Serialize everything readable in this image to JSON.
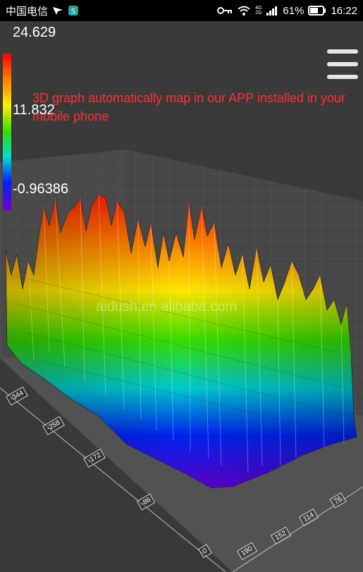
{
  "statusbar": {
    "carrier": "中国电信",
    "battery": "61%",
    "time": "16:22",
    "net_top": "4G",
    "net_bottom": "2G",
    "icons": [
      "navigation-icon",
      "app-notification-icon",
      "key-icon",
      "wifi-icon",
      "signal-icon",
      "battery-icon"
    ]
  },
  "colorbar": {
    "max": "24.629",
    "mid": "11.832",
    "min": "-0.96386",
    "colors": [
      "#ff0000",
      "#ff8800",
      "#ffee00",
      "#33dd00",
      "#00ddcc",
      "#0022ff",
      "#7700cc"
    ]
  },
  "caption": "3D graph automatically map in our APP installed in your mobile phone",
  "watermark": "aidush.en.alibaba.com",
  "axis_left": [
    "-344",
    "-258",
    "-172",
    "-86",
    "0"
  ],
  "axis_right": [
    "190",
    "152",
    "114",
    "76"
  ],
  "menu_icon": "hamburger-menu-icon"
}
